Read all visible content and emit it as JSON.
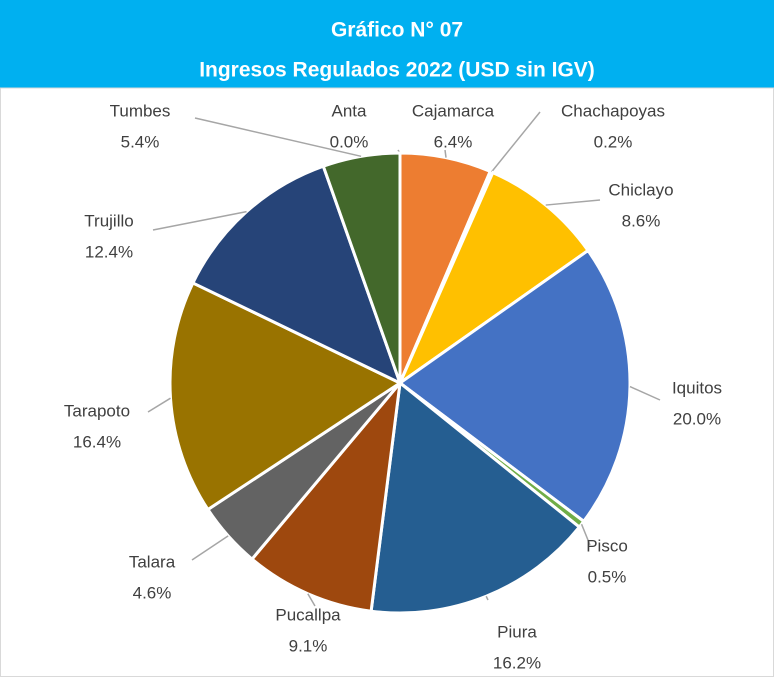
{
  "chart_data": {
    "type": "pie",
    "title": "Gráfico N° 07",
    "subtitle": "Ingresos Regulados 2022 (USD sin IGV)",
    "categories": [
      "Anta",
      "Cajamarca",
      "Chachapoyas",
      "Chiclayo",
      "Iquitos",
      "Pisco",
      "Piura",
      "Pucallpa",
      "Talara",
      "Tarapoto",
      "Trujillo",
      "Tumbes"
    ],
    "values": [
      0,
      6.4,
      0.2,
      8.6,
      20,
      0.5,
      16.2,
      9.1,
      4.6,
      16.4,
      12.4,
      5.4
    ],
    "value_labels": [
      "0.0%",
      "6.4%",
      "0.2%",
      "8.6%",
      "20.0%",
      "0.5%",
      "16.2%",
      "9.1%",
      "4.6%",
      "16.4%",
      "12.4%",
      "5.4%"
    ],
    "colors": [
      "#5b9bd5",
      "#ed7d31",
      "#a5a5a5",
      "#ffc000",
      "#4472c4",
      "#70ad47",
      "#255e91",
      "#9e480e",
      "#636363",
      "#997300",
      "#264478",
      "#43682b"
    ]
  }
}
